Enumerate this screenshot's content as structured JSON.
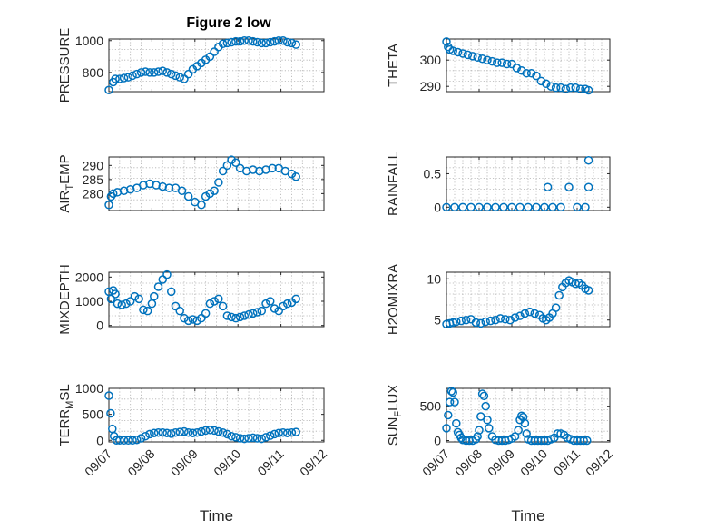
{
  "figure": {
    "title": "Figure 2 low",
    "marker_color": "#0072BD",
    "xlabel": "Time",
    "xtick_labels": [
      "09/07",
      "09/08",
      "09/09",
      "09/10",
      "09/11",
      "09/12"
    ]
  },
  "chart_data": [
    {
      "type": "scatter",
      "panel": "top-left",
      "title": "Figure 2 low",
      "ylabel": "PRESSURE",
      "ylim": [
        680,
        1010
      ],
      "yticks": [
        800,
        1000
      ],
      "xlim": [
        0,
        5
      ],
      "xlabel": "",
      "grid": true,
      "x": [
        0.0,
        0.1,
        0.15,
        0.25,
        0.35,
        0.45,
        0.55,
        0.65,
        0.75,
        0.85,
        0.95,
        1.05,
        1.15,
        1.25,
        1.35,
        1.45,
        1.55,
        1.65,
        1.75,
        1.85,
        1.95,
        2.05,
        2.15,
        2.25,
        2.35,
        2.45,
        2.55,
        2.65,
        2.75,
        2.85,
        2.95,
        3.05,
        3.15,
        3.25,
        3.35,
        3.45,
        3.55,
        3.65,
        3.75,
        3.85,
        3.95,
        4.05,
        4.15,
        4.25,
        4.35
      ],
      "y": [
        690,
        740,
        760,
        760,
        765,
        770,
        780,
        790,
        800,
        805,
        800,
        800,
        805,
        810,
        800,
        790,
        780,
        770,
        760,
        790,
        820,
        840,
        860,
        880,
        900,
        930,
        960,
        980,
        985,
        990,
        995,
        995,
        1000,
        1000,
        995,
        990,
        985,
        985,
        990,
        995,
        1000,
        1000,
        990,
        985,
        975
      ]
    },
    {
      "type": "scatter",
      "panel": "top-right",
      "ylabel": "THETA",
      "ylim": [
        288,
        308
      ],
      "yticks": [
        290,
        300
      ],
      "xlim": [
        0,
        5
      ],
      "xlabel": "",
      "grid": true,
      "x": [
        0.0,
        0.05,
        0.1,
        0.2,
        0.35,
        0.5,
        0.65,
        0.8,
        0.95,
        1.1,
        1.25,
        1.4,
        1.55,
        1.7,
        1.85,
        2.0,
        2.15,
        2.3,
        2.45,
        2.6,
        2.75,
        2.9,
        3.05,
        3.2,
        3.35,
        3.5,
        3.65,
        3.8,
        3.95,
        4.1,
        4.25,
        4.35
      ],
      "y": [
        307,
        305,
        304,
        303.5,
        303,
        302.5,
        302,
        301.5,
        301,
        300.5,
        300,
        299.5,
        299,
        299,
        298.5,
        298.5,
        297,
        296,
        295,
        295,
        294,
        292,
        291,
        290,
        289.5,
        289.5,
        289,
        289.5,
        289.5,
        289,
        289,
        288.5
      ]
    },
    {
      "type": "scatter",
      "panel": "row2-left",
      "ylabel": "AIR_TEMP",
      "ylim": [
        274,
        293
      ],
      "yticks": [
        280,
        285,
        290
      ],
      "xlim": [
        0,
        5
      ],
      "xlabel": "",
      "grid": true,
      "x": [
        0.0,
        0.05,
        0.1,
        0.2,
        0.35,
        0.5,
        0.65,
        0.8,
        0.95,
        1.1,
        1.25,
        1.4,
        1.55,
        1.7,
        1.85,
        2.0,
        2.15,
        2.25,
        2.35,
        2.45,
        2.55,
        2.65,
        2.75,
        2.85,
        2.95,
        3.05,
        3.2,
        3.35,
        3.5,
        3.65,
        3.8,
        3.95,
        4.1,
        4.25,
        4.35
      ],
      "y": [
        276,
        279,
        280,
        280.5,
        281,
        281.5,
        282,
        283,
        283.5,
        283,
        282.5,
        282,
        282,
        281,
        279,
        277,
        276,
        279,
        280,
        281,
        284,
        288,
        290,
        292,
        291,
        289,
        288,
        288.5,
        288,
        288.5,
        289,
        289,
        288,
        287,
        286
      ]
    },
    {
      "type": "scatter",
      "panel": "row2-right",
      "ylabel": "RAINFALL",
      "ylim": [
        -0.05,
        0.75
      ],
      "yticks": [
        0,
        0.5
      ],
      "xlim": [
        0,
        5
      ],
      "xlabel": "",
      "grid": true,
      "x": [
        0.0,
        0.25,
        0.5,
        0.75,
        1.0,
        1.25,
        1.5,
        1.75,
        2.0,
        2.25,
        2.5,
        2.75,
        3.0,
        3.1,
        3.25,
        3.5,
        3.75,
        4.0,
        4.25,
        4.35,
        4.35
      ],
      "y": [
        0,
        0,
        0,
        0,
        0,
        0,
        0,
        0,
        0,
        0,
        0,
        0,
        0,
        0.3,
        0,
        0,
        0.3,
        0,
        0,
        0.3,
        0.7
      ]
    },
    {
      "type": "scatter",
      "panel": "row3-left",
      "ylabel": "MIXDEPTH",
      "ylim": [
        -50,
        2200
      ],
      "yticks": [
        0,
        1000,
        2000
      ],
      "xlim": [
        0,
        5
      ],
      "xlabel": "",
      "grid": true,
      "x": [
        0.0,
        0.05,
        0.1,
        0.15,
        0.2,
        0.3,
        0.4,
        0.5,
        0.6,
        0.7,
        0.8,
        0.9,
        1.0,
        1.05,
        1.15,
        1.25,
        1.35,
        1.45,
        1.55,
        1.65,
        1.75,
        1.85,
        1.95,
        2.05,
        2.15,
        2.25,
        2.35,
        2.45,
        2.55,
        2.65,
        2.75,
        2.85,
        2.95,
        3.05,
        3.15,
        3.25,
        3.35,
        3.45,
        3.55,
        3.65,
        3.75,
        3.85,
        3.95,
        4.05,
        4.15,
        4.25,
        4.35
      ],
      "y": [
        1400,
        1100,
        1450,
        1300,
        900,
        850,
        900,
        1000,
        1200,
        1100,
        650,
        600,
        900,
        1200,
        1600,
        1900,
        2100,
        1400,
        800,
        600,
        300,
        200,
        250,
        200,
        300,
        500,
        900,
        1000,
        1100,
        800,
        400,
        350,
        300,
        350,
        400,
        450,
        500,
        550,
        600,
        900,
        1000,
        700,
        600,
        800,
        900,
        950,
        1100
      ]
    },
    {
      "type": "scatter",
      "panel": "row3-right",
      "ylabel": "H2OMIXRA",
      "ylim": [
        4.2,
        10.8
      ],
      "yticks": [
        5,
        10
      ],
      "xlim": [
        0,
        5
      ],
      "xlabel": "",
      "grid": true,
      "x": [
        0.0,
        0.1,
        0.2,
        0.3,
        0.45,
        0.6,
        0.75,
        0.9,
        1.05,
        1.2,
        1.35,
        1.5,
        1.65,
        1.8,
        1.95,
        2.1,
        2.25,
        2.4,
        2.55,
        2.7,
        2.85,
        2.95,
        3.05,
        3.15,
        3.25,
        3.35,
        3.45,
        3.55,
        3.65,
        3.75,
        3.85,
        3.95,
        4.05,
        4.15,
        4.25,
        4.35
      ],
      "y": [
        4.5,
        4.6,
        4.7,
        4.8,
        4.9,
        5.0,
        5.1,
        4.7,
        4.6,
        4.8,
        4.9,
        5.0,
        5.2,
        5.1,
        5.0,
        5.3,
        5.5,
        5.8,
        6.0,
        5.8,
        5.6,
        5.2,
        5.0,
        5.3,
        5.8,
        6.5,
        8.0,
        9.0,
        9.5,
        9.8,
        9.6,
        9.4,
        9.5,
        9.2,
        8.8,
        8.6
      ]
    },
    {
      "type": "scatter",
      "panel": "bottom-left",
      "ylabel": "TERR_MSL",
      "ylim": [
        -30,
        1000
      ],
      "yticks": [
        0,
        500,
        1000
      ],
      "xlim": [
        0,
        5
      ],
      "xlabel": "Time",
      "grid": true,
      "xtick_labels": [
        "09/07",
        "09/08",
        "09/09",
        "09/10",
        "09/11",
        "09/12"
      ],
      "x": [
        0.0,
        0.04,
        0.08,
        0.12,
        0.18,
        0.25,
        0.35,
        0.45,
        0.55,
        0.65,
        0.75,
        0.85,
        0.95,
        1.05,
        1.15,
        1.25,
        1.35,
        1.45,
        1.55,
        1.65,
        1.75,
        1.85,
        1.95,
        2.05,
        2.15,
        2.25,
        2.35,
        2.45,
        2.55,
        2.65,
        2.75,
        2.85,
        2.95,
        3.05,
        3.15,
        3.25,
        3.35,
        3.45,
        3.55,
        3.65,
        3.75,
        3.85,
        3.95,
        4.05,
        4.15,
        4.25,
        4.35
      ],
      "y": [
        860,
        520,
        220,
        80,
        0,
        0,
        0,
        0,
        0,
        10,
        40,
        80,
        120,
        140,
        150,
        150,
        140,
        130,
        150,
        160,
        170,
        150,
        140,
        150,
        170,
        190,
        200,
        190,
        170,
        150,
        120,
        80,
        60,
        40,
        30,
        40,
        50,
        40,
        30,
        60,
        90,
        120,
        140,
        150,
        140,
        150,
        160
      ]
    },
    {
      "type": "scatter",
      "panel": "bottom-right",
      "ylabel": "SUN_FLUX",
      "ylim": [
        -20,
        760
      ],
      "yticks": [
        0,
        500
      ],
      "xlim": [
        0,
        5
      ],
      "xlabel": "Time",
      "grid": true,
      "xtick_labels": [
        "09/07",
        "09/08",
        "09/09",
        "09/10",
        "09/11",
        "09/12"
      ],
      "x": [
        0.0,
        0.05,
        0.1,
        0.15,
        0.2,
        0.25,
        0.3,
        0.35,
        0.4,
        0.45,
        0.5,
        0.6,
        0.7,
        0.8,
        0.9,
        0.95,
        1.0,
        1.05,
        1.1,
        1.15,
        1.2,
        1.25,
        1.3,
        1.4,
        1.5,
        1.6,
        1.7,
        1.8,
        1.9,
        2.0,
        2.1,
        2.2,
        2.25,
        2.3,
        2.35,
        2.4,
        2.45,
        2.5,
        2.6,
        2.7,
        2.8,
        2.9,
        3.0,
        3.1,
        3.2,
        3.3,
        3.4,
        3.5,
        3.6,
        3.7,
        3.8,
        3.9,
        4.0,
        4.1,
        4.2,
        4.3
      ],
      "y": [
        180,
        370,
        560,
        720,
        700,
        560,
        250,
        120,
        80,
        40,
        10,
        0,
        0,
        0,
        20,
        60,
        150,
        350,
        680,
        650,
        500,
        300,
        180,
        60,
        10,
        0,
        0,
        0,
        10,
        30,
        60,
        150,
        300,
        360,
        340,
        250,
        100,
        20,
        0,
        0,
        0,
        0,
        0,
        0,
        20,
        40,
        100,
        100,
        80,
        40,
        20,
        0,
        0,
        0,
        0,
        0
      ]
    }
  ]
}
